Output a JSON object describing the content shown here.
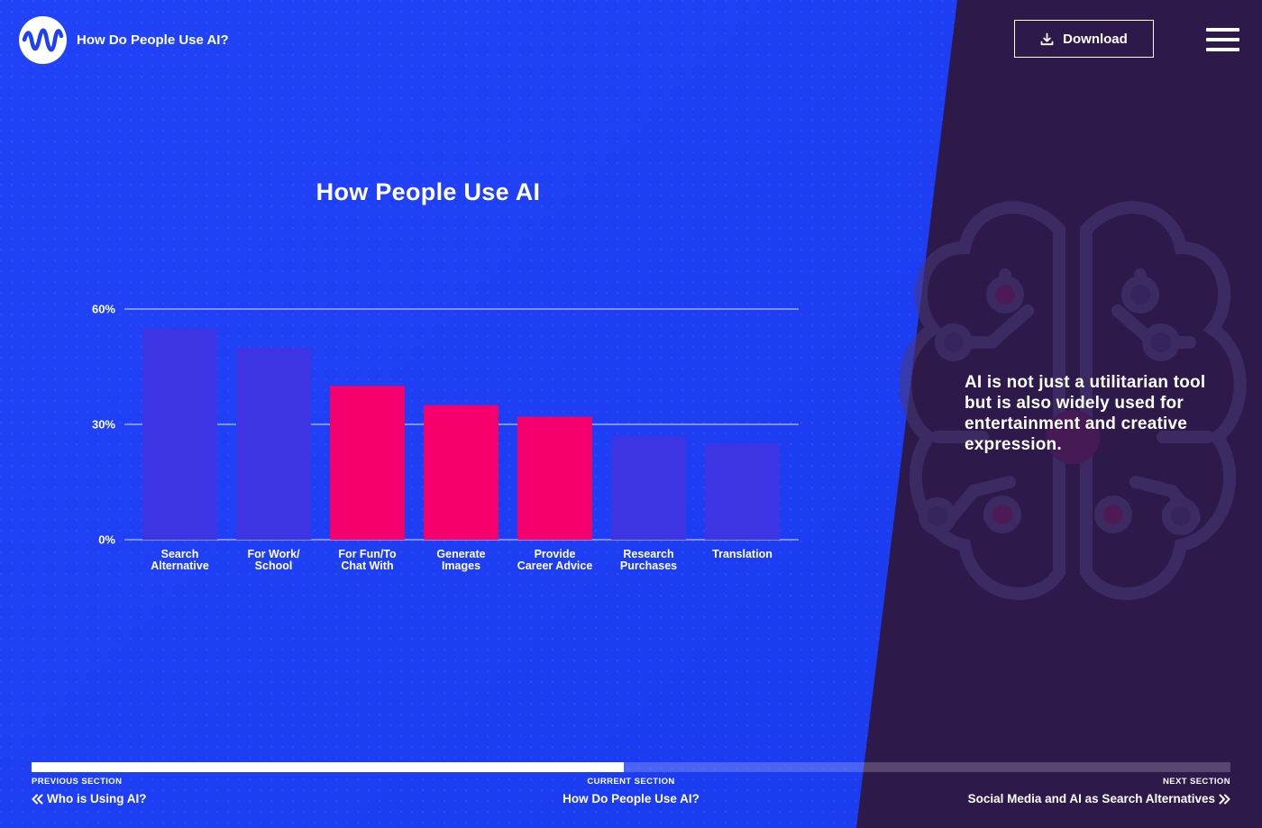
{
  "header": {
    "site_title": "How Do People Use AI?",
    "download_label": "Download"
  },
  "callout": "AI is not just a utilitarian tool but is also widely used for entertainment and creative expression.",
  "nav": {
    "previous_kicker": "PREVIOUS SECTION",
    "previous_title": "Who is Using AI?",
    "current_kicker": "CURRENT SECTION",
    "current_title": "How Do People Use AI?",
    "next_kicker": "NEXT SECTION",
    "next_title": "Social Media and AI as Search Alternatives",
    "progress": 0.494
  },
  "colors": {
    "highlight": "#f6006e",
    "muted": "#3d34e4",
    "purple_panel": "#2d1a4a"
  },
  "icons": [
    "logo-wave-icon",
    "download-icon",
    "hamburger-menu-icon",
    "double-chevron-left-icon",
    "double-chevron-right-icon",
    "brain-circuit-icon"
  ],
  "chart_data": {
    "type": "bar",
    "title": "How People Use AI",
    "categories": [
      [
        "Search",
        "Alternative"
      ],
      [
        "For Work/",
        "School"
      ],
      [
        "For Fun/To",
        "Chat With"
      ],
      [
        "Generate",
        "Images"
      ],
      [
        "Provide",
        "Career Advice"
      ],
      [
        "Research",
        "Purchases"
      ],
      [
        "Translation"
      ]
    ],
    "values": [
      55,
      50,
      40,
      35,
      32,
      27,
      25
    ],
    "highlighted": [
      false,
      false,
      true,
      true,
      true,
      false,
      false
    ],
    "ylim": [
      0,
      60
    ],
    "yticks": [
      0,
      30,
      60
    ],
    "ytick_labels": [
      "0%",
      "30%",
      "60%"
    ],
    "grid": true
  }
}
